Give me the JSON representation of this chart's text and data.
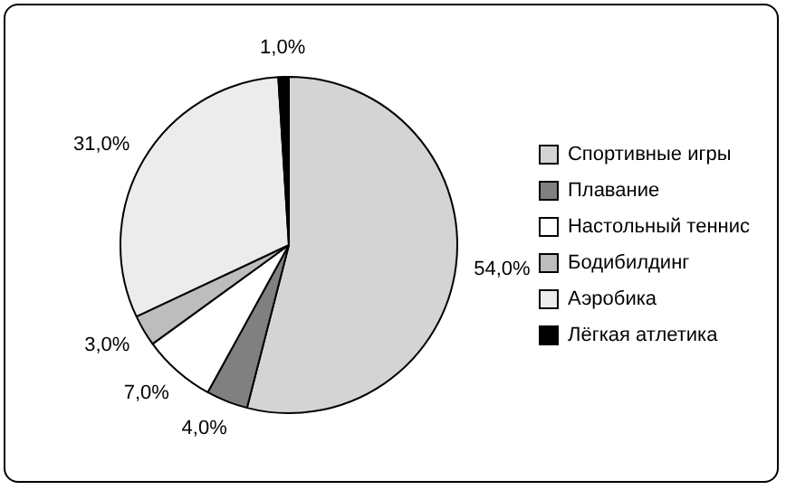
{
  "chart_data": {
    "type": "pie",
    "categories": [
      "Спортивные игры",
      "Плавание",
      "Настольный теннис",
      "Бодибилдинг",
      "Аэробика",
      "Лёгкая атлетика"
    ],
    "values": [
      54,
      4,
      7,
      3,
      31,
      1
    ],
    "value_labels": [
      "54,0%",
      "4,0%",
      "7,0%",
      "3,0%",
      "31,0%",
      "1,0%"
    ],
    "colors": [
      "#d4d4d4",
      "#808080",
      "#ffffff",
      "#bdbdbd",
      "#ececec",
      "#000000"
    ],
    "legend": "right"
  }
}
